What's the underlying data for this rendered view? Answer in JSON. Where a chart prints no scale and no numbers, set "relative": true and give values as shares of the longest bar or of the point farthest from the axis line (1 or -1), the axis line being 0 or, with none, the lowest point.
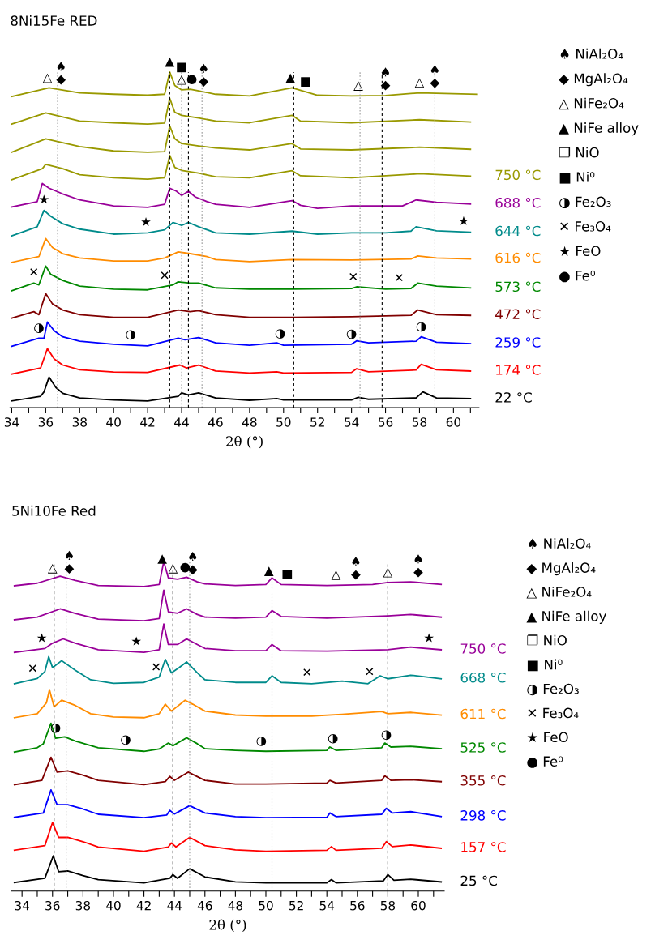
{
  "chart_data": [
    {
      "type": "line",
      "title": "8Ni15Fe RED",
      "xlabel": "2θ (°)",
      "relative": true,
      "tick_labels": "x",
      "xlim": [
        33.9,
        61.5
      ],
      "xticks": [
        34,
        {
          "value": 35,
          "label": null
        },
        36,
        {
          "value": 37,
          "label": null
        },
        38,
        {
          "value": 39,
          "label": null
        },
        40,
        {
          "value": 41,
          "label": null
        },
        42,
        {
          "value": 43,
          "label": null
        },
        44,
        {
          "value": 45,
          "label": null
        },
        46,
        {
          "value": 47,
          "label": null
        },
        48,
        {
          "value": 49,
          "label": null
        },
        50,
        {
          "value": 51,
          "label": null
        },
        52,
        {
          "value": 53,
          "label": null
        },
        54,
        {
          "value": 55,
          "label": null
        },
        56,
        {
          "value": 57,
          "label": null
        },
        58,
        {
          "value": 59,
          "label": null
        },
        60,
        {
          "value": 61,
          "label": null
        }
      ],
      "series": [
        {
          "color": "#999900",
          "x": [
            34,
            36.2,
            38,
            40,
            42,
            43,
            43.3,
            43.6,
            44,
            44.5,
            45,
            46,
            48,
            50.5,
            52,
            54,
            56,
            58,
            61.4
          ],
          "values": [
            0.927,
            0.953,
            0.938,
            0.934,
            0.931,
            0.934,
            1.0,
            0.96,
            0.947,
            0.949,
            0.944,
            0.934,
            0.929,
            0.953,
            0.931,
            0.929,
            0.93,
            0.938,
            0.934
          ]
        },
        {
          "color": "#999900",
          "x": [
            34,
            36,
            38,
            40,
            42,
            43,
            43.3,
            43.6,
            44,
            45,
            46,
            48,
            50.5,
            51,
            54,
            58,
            61
          ],
          "values": [
            0.845,
            0.878,
            0.854,
            0.849,
            0.845,
            0.848,
            0.922,
            0.88,
            0.871,
            0.863,
            0.854,
            0.849,
            0.871,
            0.854,
            0.849,
            0.858,
            0.851
          ]
        },
        {
          "color": "#999900",
          "x": [
            34,
            36,
            38,
            40,
            42,
            43,
            43.3,
            43.6,
            44,
            45,
            46,
            48,
            50.5,
            51,
            54,
            58,
            61
          ],
          "values": [
            0.761,
            0.801,
            0.778,
            0.765,
            0.761,
            0.763,
            0.84,
            0.801,
            0.787,
            0.78,
            0.774,
            0.768,
            0.787,
            0.771,
            0.768,
            0.776,
            0.77
          ]
        },
        {
          "name": "750 °C",
          "color": "#999900",
          "x": [
            34,
            35.8,
            36,
            37,
            38,
            40,
            42,
            43,
            43.3,
            43.6,
            44,
            45,
            46,
            48,
            50.5,
            51,
            54,
            58,
            61
          ],
          "values": [
            0.679,
            0.712,
            0.725,
            0.712,
            0.694,
            0.685,
            0.681,
            0.685,
            0.752,
            0.716,
            0.707,
            0.699,
            0.688,
            0.685,
            0.706,
            0.691,
            0.685,
            0.697,
            0.69
          ]
        },
        {
          "name": "688 °C",
          "color": "#990099",
          "x": [
            34,
            35.5,
            35.8,
            36.2,
            37,
            38,
            40,
            42,
            43,
            43.3,
            43.7,
            44,
            44.4,
            44.8,
            45.5,
            46,
            48,
            50.5,
            51,
            52,
            54,
            57,
            57.8,
            59,
            61
          ],
          "values": [
            0.598,
            0.614,
            0.668,
            0.654,
            0.637,
            0.619,
            0.601,
            0.597,
            0.606,
            0.654,
            0.645,
            0.632,
            0.645,
            0.628,
            0.614,
            0.606,
            0.597,
            0.617,
            0.603,
            0.594,
            0.601,
            0.601,
            0.619,
            0.612,
            0.607
          ]
        },
        {
          "name": "644 °C",
          "color": "#008b8b",
          "x": [
            34,
            35.5,
            35.9,
            36.3,
            37,
            38,
            40,
            42,
            43,
            43.5,
            44,
            44.4,
            45,
            46,
            48,
            50.5,
            52,
            54,
            56,
            57.5,
            57.8,
            59,
            61
          ],
          "values": [
            0.512,
            0.539,
            0.588,
            0.57,
            0.548,
            0.532,
            0.517,
            0.521,
            0.53,
            0.552,
            0.543,
            0.552,
            0.539,
            0.521,
            0.517,
            0.526,
            0.517,
            0.521,
            0.521,
            0.526,
            0.539,
            0.527,
            0.523
          ]
        },
        {
          "name": "616 °C",
          "color": "#ff8c00",
          "x": [
            34,
            35.6,
            36,
            36.4,
            37,
            38,
            40,
            42,
            43,
            43.8,
            44.5,
            45.5,
            46,
            48,
            50.5,
            54,
            57.5,
            57.9,
            59,
            61
          ],
          "values": [
            0.433,
            0.45,
            0.504,
            0.477,
            0.459,
            0.446,
            0.437,
            0.437,
            0.446,
            0.464,
            0.459,
            0.45,
            0.441,
            0.435,
            0.441,
            0.44,
            0.443,
            0.452,
            0.446,
            0.443
          ]
        },
        {
          "name": "573 °C",
          "color": "#008800",
          "x": [
            34,
            35.3,
            35.6,
            36,
            36.3,
            37,
            38,
            40,
            42,
            43.5,
            43.8,
            44.5,
            45,
            46,
            48,
            50.5,
            54,
            54.3,
            56,
            57.5,
            57.9,
            59,
            61
          ],
          "values": [
            0.348,
            0.371,
            0.366,
            0.422,
            0.397,
            0.379,
            0.362,
            0.353,
            0.351,
            0.366,
            0.375,
            0.371,
            0.371,
            0.357,
            0.353,
            0.353,
            0.355,
            0.36,
            0.353,
            0.355,
            0.371,
            0.362,
            0.357
          ]
        },
        {
          "name": "472 °C",
          "color": "#800000",
          "x": [
            34,
            35.3,
            35.6,
            36,
            36.4,
            37,
            38,
            40,
            42,
            43.8,
            44.5,
            45,
            46,
            48,
            50.5,
            54,
            57.5,
            57.9,
            59,
            61
          ],
          "values": [
            0.267,
            0.286,
            0.277,
            0.34,
            0.309,
            0.291,
            0.277,
            0.269,
            0.269,
            0.291,
            0.286,
            0.289,
            0.277,
            0.269,
            0.269,
            0.271,
            0.275,
            0.291,
            0.277,
            0.275
          ]
        },
        {
          "name": "259 °C",
          "color": "#0000ff",
          "x": [
            34,
            35.6,
            35.9,
            36.1,
            36.5,
            37,
            38,
            40,
            42,
            43.8,
            44.2,
            45,
            46,
            48,
            49.6,
            50,
            54,
            54.3,
            55,
            57.8,
            58.1,
            59,
            61
          ],
          "values": [
            0.183,
            0.207,
            0.207,
            0.255,
            0.229,
            0.211,
            0.198,
            0.189,
            0.184,
            0.207,
            0.202,
            0.209,
            0.193,
            0.186,
            0.193,
            0.186,
            0.189,
            0.199,
            0.193,
            0.198,
            0.211,
            0.195,
            0.191
          ]
        },
        {
          "name": "174 °C",
          "color": "#ff0000",
          "x": [
            34,
            35.7,
            36.1,
            36.5,
            37,
            38,
            40,
            42,
            43.9,
            44.3,
            45,
            46,
            48,
            49.6,
            50,
            54,
            54.3,
            55,
            57.8,
            58.1,
            59,
            61
          ],
          "values": [
            0.1,
            0.118,
            0.176,
            0.145,
            0.127,
            0.113,
            0.106,
            0.105,
            0.127,
            0.118,
            0.127,
            0.109,
            0.103,
            0.107,
            0.103,
            0.105,
            0.116,
            0.107,
            0.112,
            0.129,
            0.113,
            0.109
          ]
        },
        {
          "name": "22 °C",
          "color": "#000000",
          "x": [
            34,
            35.7,
            35.9,
            36.2,
            36.6,
            37,
            38,
            40,
            42,
            43.8,
            44,
            44.4,
            45,
            46,
            48,
            49.6,
            50,
            54,
            54.4,
            55,
            57.8,
            58.2,
            59,
            61
          ],
          "values": [
            0.02,
            0.034,
            0.047,
            0.091,
            0.06,
            0.043,
            0.029,
            0.023,
            0.02,
            0.034,
            0.044,
            0.038,
            0.044,
            0.029,
            0.022,
            0.027,
            0.023,
            0.023,
            0.031,
            0.025,
            0.029,
            0.047,
            0.029,
            0.027
          ]
        }
      ],
      "ref_lines": [
        {
          "axis": "x",
          "value": 36.7,
          "color": "#9a9a9a",
          "line_style": "dotted"
        },
        {
          "axis": "x",
          "value": 43.3,
          "color": "#000000",
          "line_style": "dashed"
        },
        {
          "axis": "x",
          "value": 44.0,
          "color": "#9a9a9a",
          "line_style": "dotted"
        },
        {
          "axis": "x",
          "value": 44.4,
          "color": "#000000",
          "line_style": "dashed"
        },
        {
          "axis": "x",
          "value": 45.2,
          "color": "#9a9a9a",
          "line_style": "dotted"
        },
        {
          "axis": "x",
          "value": 50.6,
          "color": "#000000",
          "line_style": "dashed"
        },
        {
          "axis": "x",
          "value": 54.5,
          "color": "#9a9a9a",
          "line_style": "dotted"
        },
        {
          "axis": "x",
          "value": 55.8,
          "color": "#000000",
          "line_style": "dashed"
        },
        {
          "axis": "x",
          "value": 58.9,
          "color": "#c8c8c8",
          "line_style": "dotted"
        }
      ],
      "annotations": [
        {
          "text": "△",
          "x": 36.1,
          "y": 0.952
        },
        {
          "text": "◆",
          "x": 36.9,
          "y": 0.947
        },
        {
          "text": "♠",
          "x": 36.9,
          "y": 0.947
        },
        {
          "text": "▲",
          "x": 43.3,
          "y": 1.0
        },
        {
          "text": "△",
          "x": 44.0,
          "y": 0.947
        },
        {
          "text": "■",
          "x": 44.0,
          "y": 0.947
        },
        {
          "text": "●",
          "x": 44.6,
          "y": 0.948
        },
        {
          "text": "◆",
          "x": 45.3,
          "y": 0.941
        },
        {
          "text": "♠",
          "x": 45.3,
          "y": 0.941
        },
        {
          "text": "▲",
          "x": 50.4,
          "y": 0.952
        },
        {
          "text": "■",
          "x": 51.3,
          "y": 0.941
        },
        {
          "text": "△",
          "x": 54.4,
          "y": 0.929
        },
        {
          "text": "◆",
          "x": 56.0,
          "y": 0.93
        },
        {
          "text": "♠",
          "x": 56.0,
          "y": 0.93
        },
        {
          "text": "△",
          "x": 58.0,
          "y": 0.938
        },
        {
          "text": "◆",
          "x": 58.9,
          "y": 0.937
        },
        {
          "text": "♠",
          "x": 58.9,
          "y": 0.937
        },
        {
          "text": "★",
          "x": 35.9,
          "y": 0.588
        },
        {
          "text": "★",
          "x": 41.9,
          "y": 0.521
        },
        {
          "text": "★",
          "x": 60.6,
          "y": 0.524
        },
        {
          "text": "✕",
          "x": 35.3,
          "y": 0.371
        },
        {
          "text": "✕",
          "x": 43.0,
          "y": 0.361
        },
        {
          "text": "✕",
          "x": 54.1,
          "y": 0.357
        },
        {
          "text": "✕",
          "x": 56.8,
          "y": 0.354
        },
        {
          "text": "◑",
          "x": 35.6,
          "y": 0.207
        },
        {
          "text": "◑",
          "x": 41.0,
          "y": 0.187
        },
        {
          "text": "◑",
          "x": 49.8,
          "y": 0.19
        },
        {
          "text": "◑",
          "x": 54.0,
          "y": 0.189
        },
        {
          "text": "◑",
          "x": 58.1,
          "y": 0.211
        },
        "♠ NiAl₂O₄",
        "◆ MgAl₂O₄",
        "△ NiFe₂O₄",
        "▲ NiFe alloy",
        "❐ NiO",
        "■ Ni⁰",
        "◑ Fe₂O₃",
        "✕ Fe₃O₄",
        "★ FeO",
        "● Fe⁰"
      ]
    },
    {
      "type": "line",
      "title": "5Ni10Fe Red",
      "xlabel": "2θ (°)",
      "relative": true,
      "tick_labels": "x",
      "xlim": [
        33.3,
        61.7
      ],
      "xticks": [
        34,
        {
          "value": 35,
          "label": null
        },
        36,
        {
          "value": 37,
          "label": null
        },
        38,
        {
          "value": 39,
          "label": null
        },
        40,
        {
          "value": 41,
          "label": null
        },
        42,
        {
          "value": 43,
          "label": null
        },
        44,
        {
          "value": 45,
          "label": null
        },
        46,
        {
          "value": 47,
          "label": null
        },
        48,
        {
          "value": 49,
          "label": null
        },
        50,
        {
          "value": 51,
          "label": null
        },
        52,
        {
          "value": 53,
          "label": null
        },
        54,
        {
          "value": 55,
          "label": null
        },
        56,
        {
          "value": 57,
          "label": null
        },
        58,
        {
          "value": 59,
          "label": null
        },
        60,
        {
          "value": 61,
          "label": null
        }
      ],
      "series": [
        {
          "color": "#990099",
          "x": [
            33.5,
            35,
            36.5,
            37.5,
            39,
            42,
            43,
            43.3,
            43.6,
            44.2,
            44.8,
            45.5,
            46,
            48,
            50,
            50.4,
            51,
            54,
            57,
            58,
            59.5,
            61.5
          ],
          "values": [
            0.926,
            0.934,
            0.955,
            0.942,
            0.927,
            0.924,
            0.93,
            1.0,
            0.95,
            0.946,
            0.952,
            0.938,
            0.932,
            0.927,
            0.93,
            0.95,
            0.93,
            0.927,
            0.93,
            0.936,
            0.938,
            0.93
          ]
        },
        {
          "color": "#990099",
          "x": [
            33.5,
            35,
            36.5,
            37.5,
            39,
            42,
            43,
            43.3,
            43.6,
            44.2,
            44.8,
            45.5,
            46,
            48,
            50,
            50.4,
            51,
            54,
            58,
            59.5,
            61.5
          ],
          "values": [
            0.823,
            0.831,
            0.856,
            0.842,
            0.825,
            0.82,
            0.827,
            0.913,
            0.847,
            0.843,
            0.856,
            0.839,
            0.831,
            0.828,
            0.831,
            0.851,
            0.833,
            0.828,
            0.835,
            0.839,
            0.831
          ]
        },
        {
          "name": "750 °C",
          "color": "#990099",
          "x": [
            33.5,
            35.5,
            36,
            36.7,
            37.5,
            39,
            42,
            43,
            43.3,
            43.6,
            44.2,
            44.8,
            45.5,
            46,
            48,
            50,
            50.4,
            51,
            54,
            58,
            59.5,
            61.5
          ],
          "values": [
            0.724,
            0.736,
            0.752,
            0.765,
            0.752,
            0.732,
            0.724,
            0.732,
            0.81,
            0.748,
            0.748,
            0.765,
            0.748,
            0.736,
            0.729,
            0.729,
            0.748,
            0.729,
            0.728,
            0.732,
            0.74,
            0.732
          ]
        },
        {
          "name": "668 °C",
          "color": "#008b8b",
          "x": [
            33.5,
            35,
            35.5,
            35.75,
            36,
            36.6,
            37.5,
            38.5,
            40,
            42,
            43,
            43.4,
            43.8,
            44.3,
            44.8,
            45.5,
            46,
            48,
            50,
            50.4,
            51,
            53,
            55,
            56.7,
            57.5,
            58,
            59.5,
            61.5
          ],
          "values": [
            0.629,
            0.645,
            0.666,
            0.711,
            0.678,
            0.699,
            0.67,
            0.641,
            0.63,
            0.633,
            0.649,
            0.703,
            0.662,
            0.678,
            0.695,
            0.662,
            0.641,
            0.633,
            0.633,
            0.653,
            0.633,
            0.629,
            0.637,
            0.629,
            0.653,
            0.644,
            0.655,
            0.644
          ]
        },
        {
          "name": "611 °C",
          "color": "#ff8c00",
          "x": [
            33.5,
            35,
            35.6,
            35.8,
            36.1,
            36.6,
            37.5,
            38.5,
            40,
            42,
            43,
            43.4,
            43.8,
            44.7,
            45.2,
            46,
            48,
            50,
            53,
            55,
            57.6,
            58,
            59.5,
            61.5
          ],
          "values": [
            0.526,
            0.538,
            0.571,
            0.611,
            0.559,
            0.579,
            0.563,
            0.538,
            0.528,
            0.526,
            0.538,
            0.567,
            0.546,
            0.579,
            0.567,
            0.546,
            0.534,
            0.531,
            0.531,
            0.536,
            0.545,
            0.538,
            0.542,
            0.534
          ]
        },
        {
          "name": "525 °C",
          "color": "#008800",
          "x": [
            33.5,
            35,
            35.4,
            35.9,
            36.2,
            36.8,
            37.5,
            39,
            42,
            43,
            43.6,
            43.9,
            44.8,
            45.5,
            46,
            48,
            50,
            54,
            54.2,
            54.6,
            57.6,
            57.8,
            58.2,
            59.5,
            61.5
          ],
          "values": [
            0.422,
            0.435,
            0.447,
            0.509,
            0.464,
            0.468,
            0.455,
            0.435,
            0.424,
            0.431,
            0.449,
            0.441,
            0.465,
            0.447,
            0.432,
            0.427,
            0.424,
            0.427,
            0.437,
            0.427,
            0.435,
            0.449,
            0.437,
            0.439,
            0.432
          ]
        },
        {
          "name": "355 °C",
          "color": "#800000",
          "x": [
            33.5,
            35.3,
            35.9,
            36.3,
            37,
            38,
            39,
            42,
            43.4,
            43.7,
            44,
            44.9,
            46,
            48,
            50,
            54,
            54.2,
            54.6,
            57.6,
            57.8,
            58.2,
            59.5,
            61.5
          ],
          "values": [
            0.323,
            0.336,
            0.406,
            0.361,
            0.365,
            0.352,
            0.336,
            0.323,
            0.332,
            0.348,
            0.336,
            0.361,
            0.336,
            0.325,
            0.325,
            0.328,
            0.336,
            0.328,
            0.336,
            0.35,
            0.336,
            0.338,
            0.332
          ]
        },
        {
          "name": "298 °C",
          "color": "#0000ff",
          "x": [
            33.5,
            35.4,
            35.9,
            36.3,
            37,
            38,
            39,
            42,
            43.5,
            43.7,
            44,
            45,
            46,
            48,
            50,
            54,
            54.2,
            54.6,
            57.6,
            57.9,
            58.3,
            59.5,
            61.5
          ],
          "values": [
            0.224,
            0.237,
            0.307,
            0.262,
            0.262,
            0.249,
            0.233,
            0.223,
            0.231,
            0.245,
            0.234,
            0.259,
            0.237,
            0.226,
            0.223,
            0.224,
            0.237,
            0.226,
            0.233,
            0.251,
            0.237,
            0.241,
            0.226
          ]
        },
        {
          "name": "157 °C",
          "color": "#ff0000",
          "x": [
            33.5,
            35.5,
            36,
            36.4,
            37,
            38,
            39,
            42,
            43.6,
            43.8,
            44.1,
            45,
            46,
            48,
            50,
            54,
            54.3,
            54.6,
            57.6,
            57.9,
            58.3,
            59.5,
            61.5
          ],
          "values": [
            0.124,
            0.138,
            0.208,
            0.163,
            0.163,
            0.15,
            0.134,
            0.121,
            0.134,
            0.146,
            0.134,
            0.163,
            0.138,
            0.125,
            0.121,
            0.124,
            0.135,
            0.124,
            0.13,
            0.15,
            0.135,
            0.14,
            0.13
          ]
        },
        {
          "name": "25 °C",
          "color": "#000000",
          "x": [
            33.5,
            35.5,
            36.05,
            36.4,
            37,
            38,
            39,
            42,
            43.7,
            43.9,
            44.2,
            45,
            46,
            48,
            50,
            54,
            54.3,
            54.6,
            57.7,
            58,
            58.4,
            59.5,
            61.5
          ],
          "values": [
            0.026,
            0.039,
            0.107,
            0.059,
            0.061,
            0.047,
            0.035,
            0.025,
            0.039,
            0.05,
            0.039,
            0.068,
            0.043,
            0.028,
            0.025,
            0.025,
            0.035,
            0.025,
            0.031,
            0.05,
            0.033,
            0.036,
            0.028
          ]
        }
      ],
      "ref_lines": [
        {
          "axis": "x",
          "value": 36.1,
          "color": "#000000",
          "line_style": "dashed"
        },
        {
          "axis": "x",
          "value": 36.9,
          "color": "#b0b0b0",
          "line_style": "dotted"
        },
        {
          "axis": "x",
          "value": 43.9,
          "color": "#000000",
          "line_style": "dashed"
        },
        {
          "axis": "x",
          "value": 45.0,
          "color": "#9a9a9a",
          "line_style": "dotted"
        },
        {
          "axis": "x",
          "value": 50.4,
          "color": "#b0b0b0",
          "line_style": "dotted"
        },
        {
          "axis": "x",
          "value": 58.0,
          "color": "#000000",
          "line_style": "dashed"
        }
      ],
      "annotations": [
        {
          "text": "△",
          "x": 36.0,
          "y": 0.948
        },
        {
          "text": "◆",
          "x": 37.1,
          "y": 0.947
        },
        {
          "text": "♠",
          "x": 37.1,
          "y": 0.947
        },
        {
          "text": "▲",
          "x": 43.2,
          "y": 0.977
        },
        {
          "text": "△",
          "x": 43.9,
          "y": 0.948
        },
        {
          "text": "●",
          "x": 44.7,
          "y": 0.951
        },
        {
          "text": "◆",
          "x": 45.2,
          "y": 0.944
        },
        {
          "text": "♠",
          "x": 45.2,
          "y": 0.944
        },
        {
          "text": "▲",
          "x": 50.2,
          "y": 0.94
        },
        {
          "text": "■",
          "x": 51.4,
          "y": 0.93
        },
        {
          "text": "△",
          "x": 54.6,
          "y": 0.928
        },
        {
          "text": "◆",
          "x": 55.9,
          "y": 0.929
        },
        {
          "text": "♠",
          "x": 55.9,
          "y": 0.929
        },
        {
          "text": "△",
          "x": 58.0,
          "y": 0.936
        },
        {
          "text": "◆",
          "x": 60.0,
          "y": 0.936
        },
        {
          "text": "♠",
          "x": 60.0,
          "y": 0.936
        },
        {
          "text": "★",
          "x": 35.3,
          "y": 0.735
        },
        {
          "text": "★",
          "x": 41.5,
          "y": 0.725
        },
        {
          "text": "★",
          "x": 60.7,
          "y": 0.735
        },
        {
          "text": "✕",
          "x": 34.7,
          "y": 0.642
        },
        {
          "text": "✕",
          "x": 42.8,
          "y": 0.646
        },
        {
          "text": "✕",
          "x": 52.7,
          "y": 0.63
        },
        {
          "text": "✕",
          "x": 56.8,
          "y": 0.632
        },
        {
          "text": "◑",
          "x": 36.2,
          "y": 0.464
        },
        {
          "text": "◑",
          "x": 40.8,
          "y": 0.428
        },
        {
          "text": "◑",
          "x": 49.7,
          "y": 0.424
        },
        {
          "text": "◑",
          "x": 54.4,
          "y": 0.432
        },
        {
          "text": "◑",
          "x": 57.9,
          "y": 0.443
        },
        "♠ NiAl₂O₄",
        "◆ MgAl₂O₄",
        "△ NiFe₂O₄",
        "▲ NiFe alloy",
        "❐ NiO",
        "■ Ni⁰",
        "◑ Fe₂O₃",
        "✕ Fe₃O₄",
        "★ FeO",
        "● Fe⁰"
      ]
    }
  ]
}
